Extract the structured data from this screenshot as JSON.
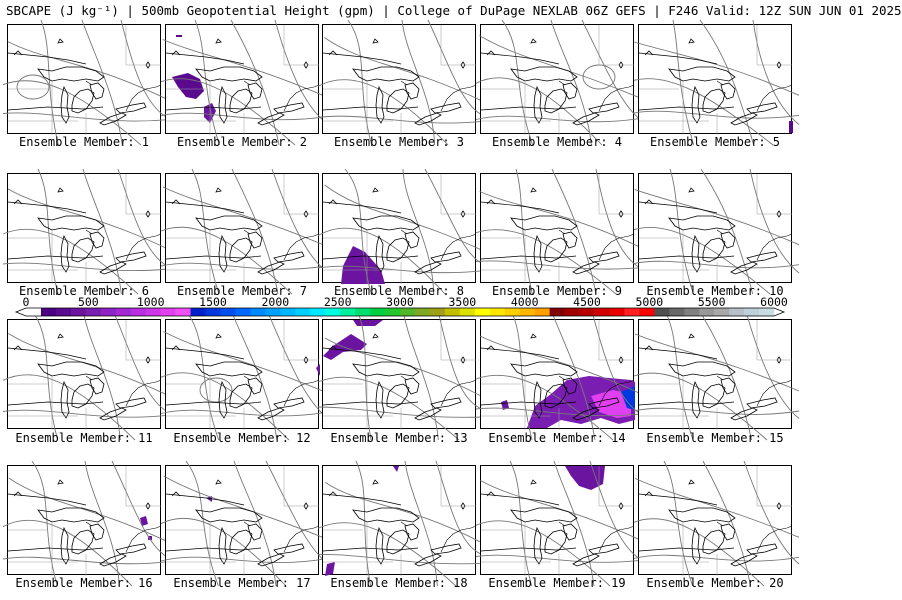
{
  "header": {
    "title": "SBCAPE (J kg⁻¹) | 500mb Geopotential Height (gpm) | College of DuPage NEXLAB 06Z GEFS | F246 Valid: 12Z SUN JUN 01 2025"
  },
  "colorbar": {
    "tick_labels": [
      "0",
      "500",
      "1000",
      "1500",
      "2000",
      "2500",
      "3000",
      "3500",
      "4000",
      "4500",
      "5000",
      "5500",
      "6000"
    ],
    "colors": [
      "#ffffff",
      "#4b0082",
      "#5a0a8f",
      "#6a14a0",
      "#7a1eb2",
      "#8e22c4",
      "#a228d4",
      "#b82ee0",
      "#cc35ea",
      "#e040f0",
      "#f050f5",
      "#0020c8",
      "#0038e0",
      "#0050f0",
      "#0068ff",
      "#0088ff",
      "#00a0ff",
      "#00b8ff",
      "#00d0ff",
      "#00e8ff",
      "#00ffe0",
      "#00f0a0",
      "#00e070",
      "#00d040",
      "#20c830",
      "#50b828",
      "#80a820",
      "#a0a018",
      "#c0c000",
      "#e0e000",
      "#ffff00",
      "#ffe800",
      "#ffd000",
      "#ffb800",
      "#ffa000",
      "#800000",
      "#a00000",
      "#b80000",
      "#d00000",
      "#e80000",
      "#ff2020",
      "#ff0000",
      "#505050",
      "#686868",
      "#808080",
      "#989898",
      "#a8a8a8",
      "#b8c0c8",
      "#c0d0d8",
      "#c8dce6"
    ]
  },
  "members": [
    {
      "label": "Ensemble Member: 1"
    },
    {
      "label": "Ensemble Member: 2"
    },
    {
      "label": "Ensemble Member: 3"
    },
    {
      "label": "Ensemble Member: 4"
    },
    {
      "label": "Ensemble Member: 5"
    },
    {
      "label": "Ensemble Member: 6"
    },
    {
      "label": "Ensemble Member: 7"
    },
    {
      "label": "Ensemble Member: 8"
    },
    {
      "label": "Ensemble Member: 9"
    },
    {
      "label": "Ensemble Member: 10"
    },
    {
      "label": "Ensemble Member: 11"
    },
    {
      "label": "Ensemble Member: 12"
    },
    {
      "label": "Ensemble Member: 13"
    },
    {
      "label": "Ensemble Member: 14"
    },
    {
      "label": "Ensemble Member: 15"
    },
    {
      "label": "Ensemble Member: 16"
    },
    {
      "label": "Ensemble Member: 17"
    },
    {
      "label": "Ensemble Member: 18"
    },
    {
      "label": "Ensemble Member: 19"
    },
    {
      "label": "Ensemble Member: 20"
    }
  ]
}
